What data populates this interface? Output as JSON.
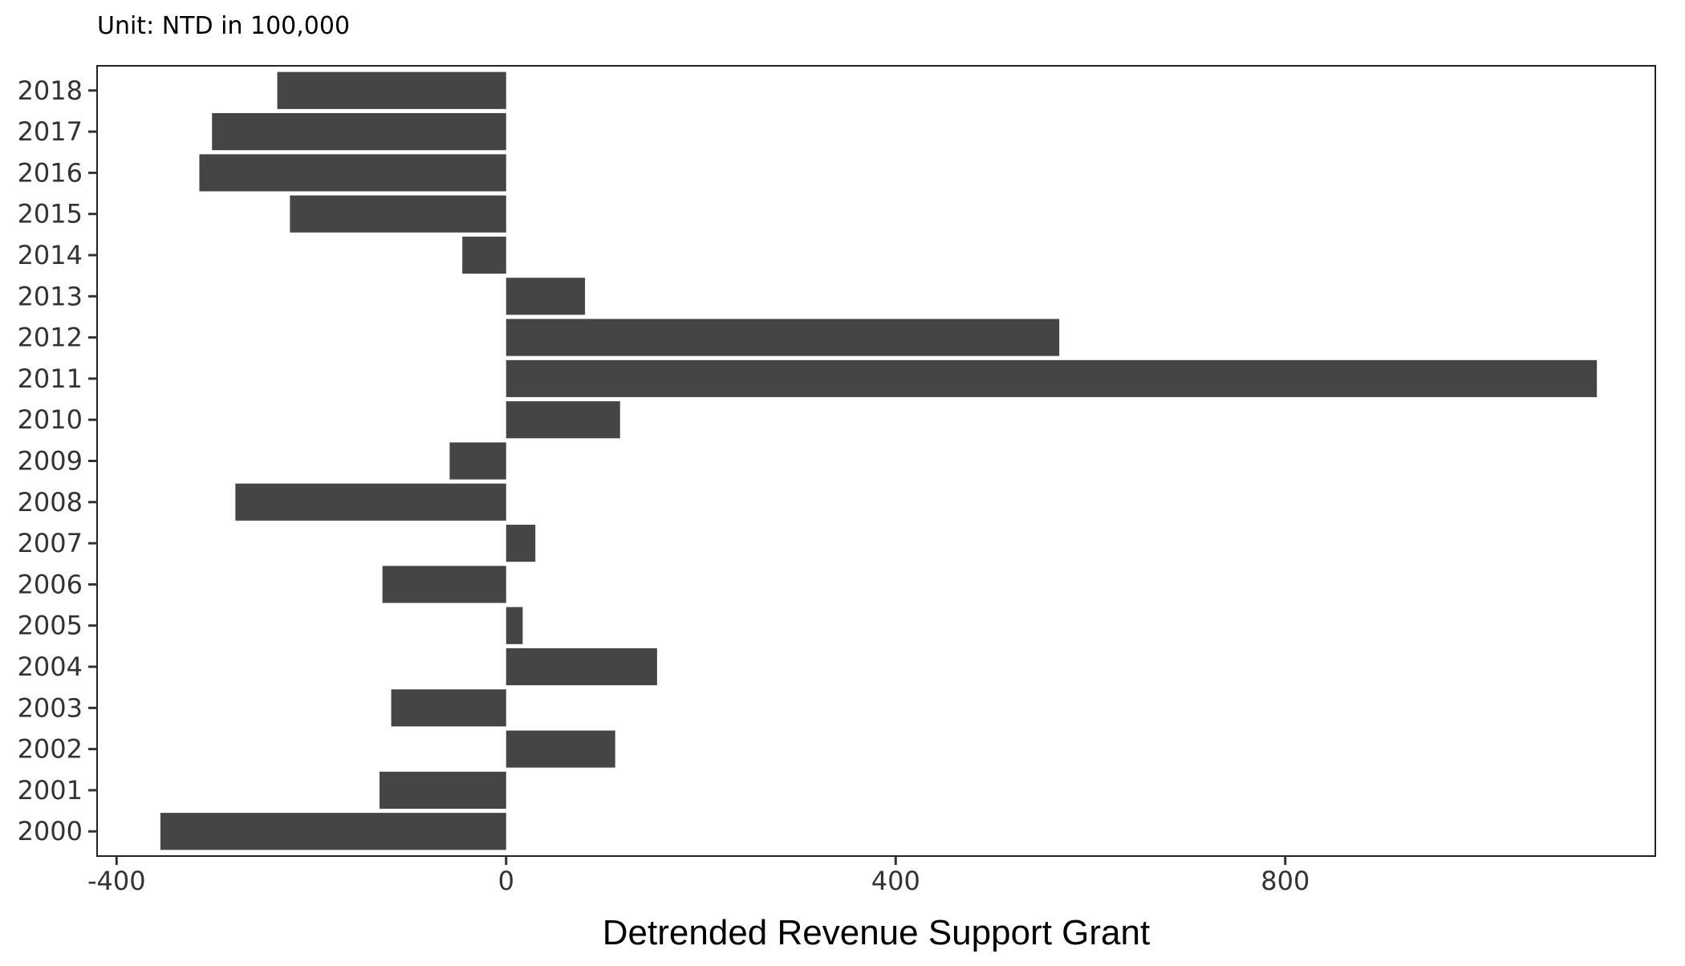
{
  "chart_data": {
    "type": "bar",
    "orientation": "horizontal",
    "subtitle": "Unit: NTD in 100,000",
    "xlabel": "Detrended Revenue Support Grant",
    "ylabel": "",
    "xlim": [
      -420,
      1180
    ],
    "xticks": [
      -400,
      0,
      400,
      800
    ],
    "xtick_labels": [
      "-400",
      "0",
      "400",
      "800"
    ],
    "categories": [
      "2000",
      "2001",
      "2002",
      "2003",
      "2004",
      "2005",
      "2006",
      "2007",
      "2008",
      "2009",
      "2010",
      "2011",
      "2012",
      "2013",
      "2014",
      "2015",
      "2016",
      "2017",
      "2018"
    ],
    "values": [
      -355,
      -130,
      112,
      -118,
      155,
      17,
      -127,
      30,
      -278,
      -58,
      117,
      1120,
      568,
      81,
      -45,
      -222,
      -315,
      -302,
      -235
    ],
    "bar_color": "#454545",
    "grid": false,
    "legend": "none"
  }
}
